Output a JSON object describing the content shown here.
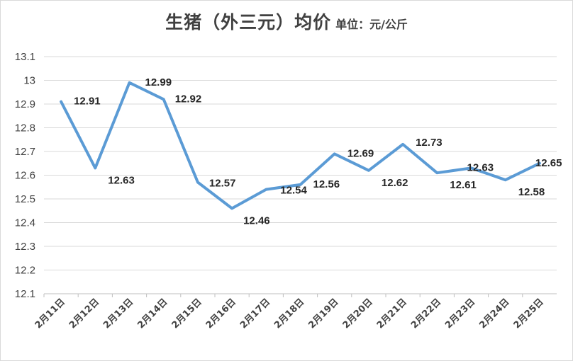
{
  "chart_data": {
    "type": "line",
    "title": "生猪（外三元）均价",
    "unit_label": "单位：元/公斤",
    "categories": [
      "2月11日",
      "2月12日",
      "2月13日",
      "2月14日",
      "2月15日",
      "2月16日",
      "2月17日",
      "2月18日",
      "2月19日",
      "2月20日",
      "2月21日",
      "2月22日",
      "2月23日",
      "2月24日",
      "2月25日"
    ],
    "series": [
      {
        "values": [
          12.91,
          12.63,
          12.99,
          12.92,
          12.57,
          12.46,
          12.54,
          12.56,
          12.69,
          12.62,
          12.73,
          12.61,
          12.63,
          12.58,
          12.65
        ]
      }
    ],
    "data_labels": [
      "12.91",
      "12.63",
      "12.99",
      "12.92",
      "12.57",
      "12.46",
      "12.54",
      "12.56",
      "12.69",
      "12.62",
      "12.73",
      "12.61",
      "12.63",
      "12.58",
      "12.65"
    ],
    "ylim": [
      12.1,
      13.1
    ],
    "y_ticks": [
      13.1,
      13,
      12.9,
      12.8,
      12.7,
      12.6,
      12.5,
      12.4,
      12.3,
      12.2,
      12.1
    ],
    "y_tick_labels": [
      "13.1",
      "13",
      "12.9",
      "12.8",
      "12.7",
      "12.6",
      "12.5",
      "12.4",
      "12.3",
      "12.2",
      "12.1"
    ],
    "grid": true,
    "line_color": "#5b9bd5",
    "grid_color": "#d9d9d9"
  }
}
